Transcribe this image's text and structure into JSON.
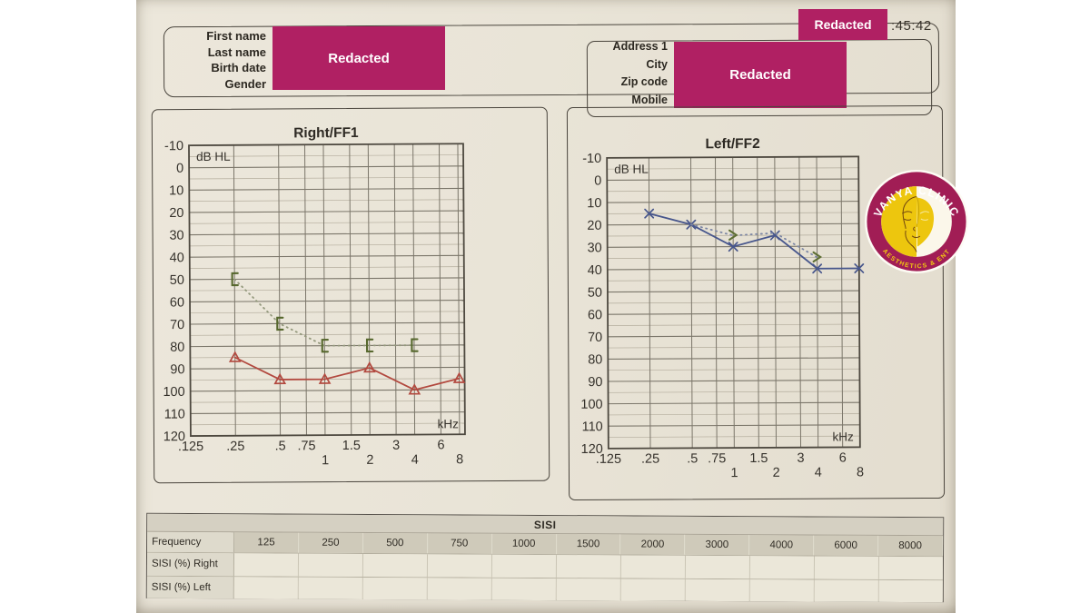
{
  "header": {
    "left_fields": [
      "First name",
      "Last name",
      "Birth date",
      "Gender"
    ],
    "right_fields": [
      "Address 1",
      "City",
      "Zip code",
      "Mobile"
    ],
    "timestamp_partial": ":45:42",
    "redaction_label": "Redacted",
    "redaction_color": "#b02063"
  },
  "logo": {
    "top_text": "VANYA CLINIC",
    "bottom_text": "AESTHETICS & ENT",
    "ring_color": "#a11d55",
    "center_color": "#edc60e"
  },
  "chart_data": [
    {
      "type": "line",
      "title": "Right/FF1",
      "y_axis_label": "dB HL",
      "x_axis_label": "kHz",
      "y_ticks": [
        -10,
        0,
        10,
        20,
        30,
        40,
        50,
        60,
        70,
        80,
        90,
        100,
        110,
        120
      ],
      "y_range": [
        -10,
        120
      ],
      "x_tick_labels": [
        ".125",
        ".25",
        ".5",
        ".75",
        "1",
        "1.5",
        "2",
        "3",
        "4",
        "6",
        "8"
      ],
      "x_tick_hz": [
        125,
        250,
        500,
        750,
        1000,
        1500,
        2000,
        3000,
        4000,
        6000,
        8000
      ],
      "x_tick_row": [
        0,
        0,
        0,
        0,
        1,
        0,
        1,
        0,
        1,
        0,
        1
      ],
      "grid": "on",
      "series": [
        {
          "name": "air-conduction-right-masked",
          "symbol": "triangle",
          "color": "#b2493f",
          "line": "solid",
          "x_hz": [
            250,
            500,
            1000,
            2000,
            4000,
            8000
          ],
          "y_db": [
            85,
            95,
            95,
            90,
            100,
            95
          ]
        },
        {
          "name": "bone-conduction-right-masked",
          "symbol": "left-bracket",
          "color": "#57682e",
          "line": "dotted",
          "line_color": "#93987c",
          "x_hz": [
            250,
            500,
            1000,
            2000,
            4000
          ],
          "y_db": [
            50,
            70,
            80,
            80,
            80
          ]
        }
      ]
    },
    {
      "type": "line",
      "title": "Left/FF2",
      "y_axis_label": "dB HL",
      "x_axis_label": "kHz",
      "y_ticks": [
        -10,
        0,
        10,
        20,
        30,
        40,
        50,
        60,
        70,
        80,
        90,
        100,
        110,
        120
      ],
      "y_range": [
        -10,
        120
      ],
      "x_tick_labels": [
        ".125",
        ".25",
        ".5",
        ".75",
        "1",
        "1.5",
        "2",
        "3",
        "4",
        "6",
        "8"
      ],
      "x_tick_hz": [
        125,
        250,
        500,
        750,
        1000,
        1500,
        2000,
        3000,
        4000,
        6000,
        8000
      ],
      "x_tick_row": [
        0,
        0,
        0,
        0,
        1,
        0,
        1,
        0,
        1,
        0,
        1
      ],
      "grid": "on",
      "series": [
        {
          "name": "air-conduction-left",
          "symbol": "x",
          "color": "#47568c",
          "line": "solid",
          "x_hz": [
            250,
            500,
            1000,
            2000,
            4000,
            8000
          ],
          "y_db": [
            15,
            20,
            30,
            25,
            40,
            40
          ]
        },
        {
          "name": "bone-conduction-left-unmasked",
          "symbol": "greater-than",
          "color": "#5d6e33",
          "line": "dotted",
          "line_color": "#7d87a4",
          "x_hz": [
            1000,
            4000
          ],
          "y_db": [
            25,
            35
          ],
          "line_path_hz": [
            500,
            1000,
            2000,
            4000
          ],
          "line_path_db": [
            20,
            25,
            24,
            35
          ]
        }
      ]
    }
  ],
  "sisi_table": {
    "title": "SISI",
    "row_header": "Frequency",
    "frequencies": [
      "125",
      "250",
      "500",
      "750",
      "1000",
      "1500",
      "2000",
      "3000",
      "4000",
      "6000",
      "8000"
    ],
    "rows": [
      {
        "label": "SISI (%) Right",
        "values": [
          "",
          "",
          "",
          "",
          "",
          "",
          "",
          "",
          "",
          "",
          ""
        ]
      },
      {
        "label": "SISI (%) Left",
        "values": [
          "",
          "",
          "",
          "",
          "",
          "",
          "",
          "",
          "",
          "",
          ""
        ]
      }
    ]
  }
}
